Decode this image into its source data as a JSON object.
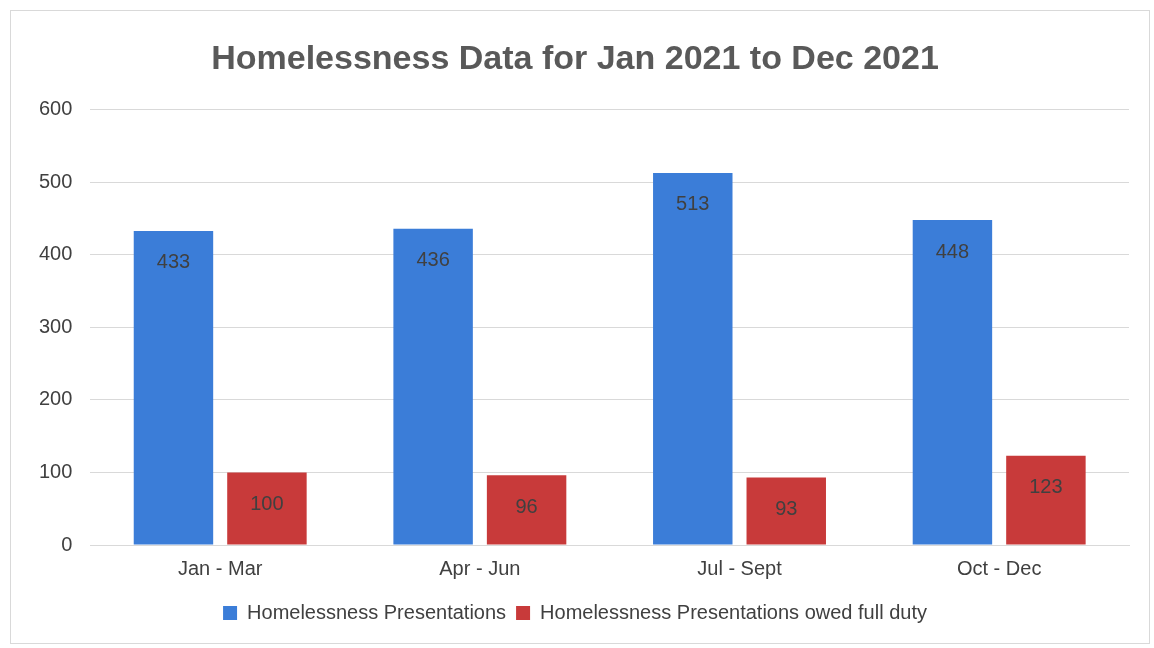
{
  "chart_data": {
    "type": "bar",
    "title": "Homelessness Data for Jan 2021 to Dec 2021",
    "categories": [
      "Jan - Mar",
      "Apr - Jun",
      "Jul - Sept",
      "Oct - Dec"
    ],
    "series": [
      {
        "name": "Homelessness Presentations",
        "color": "#3b7dd8",
        "values": [
          433,
          436,
          513,
          448
        ]
      },
      {
        "name": "Homelessness Presentations owed full duty",
        "color": "#c83a3a",
        "values": [
          100,
          96,
          93,
          123
        ]
      }
    ],
    "ylim": [
      0,
      600
    ],
    "yticks": [
      0,
      100,
      200,
      300,
      400,
      500,
      600
    ],
    "grid": "y",
    "legend": "bottom",
    "data_labels": true
  }
}
